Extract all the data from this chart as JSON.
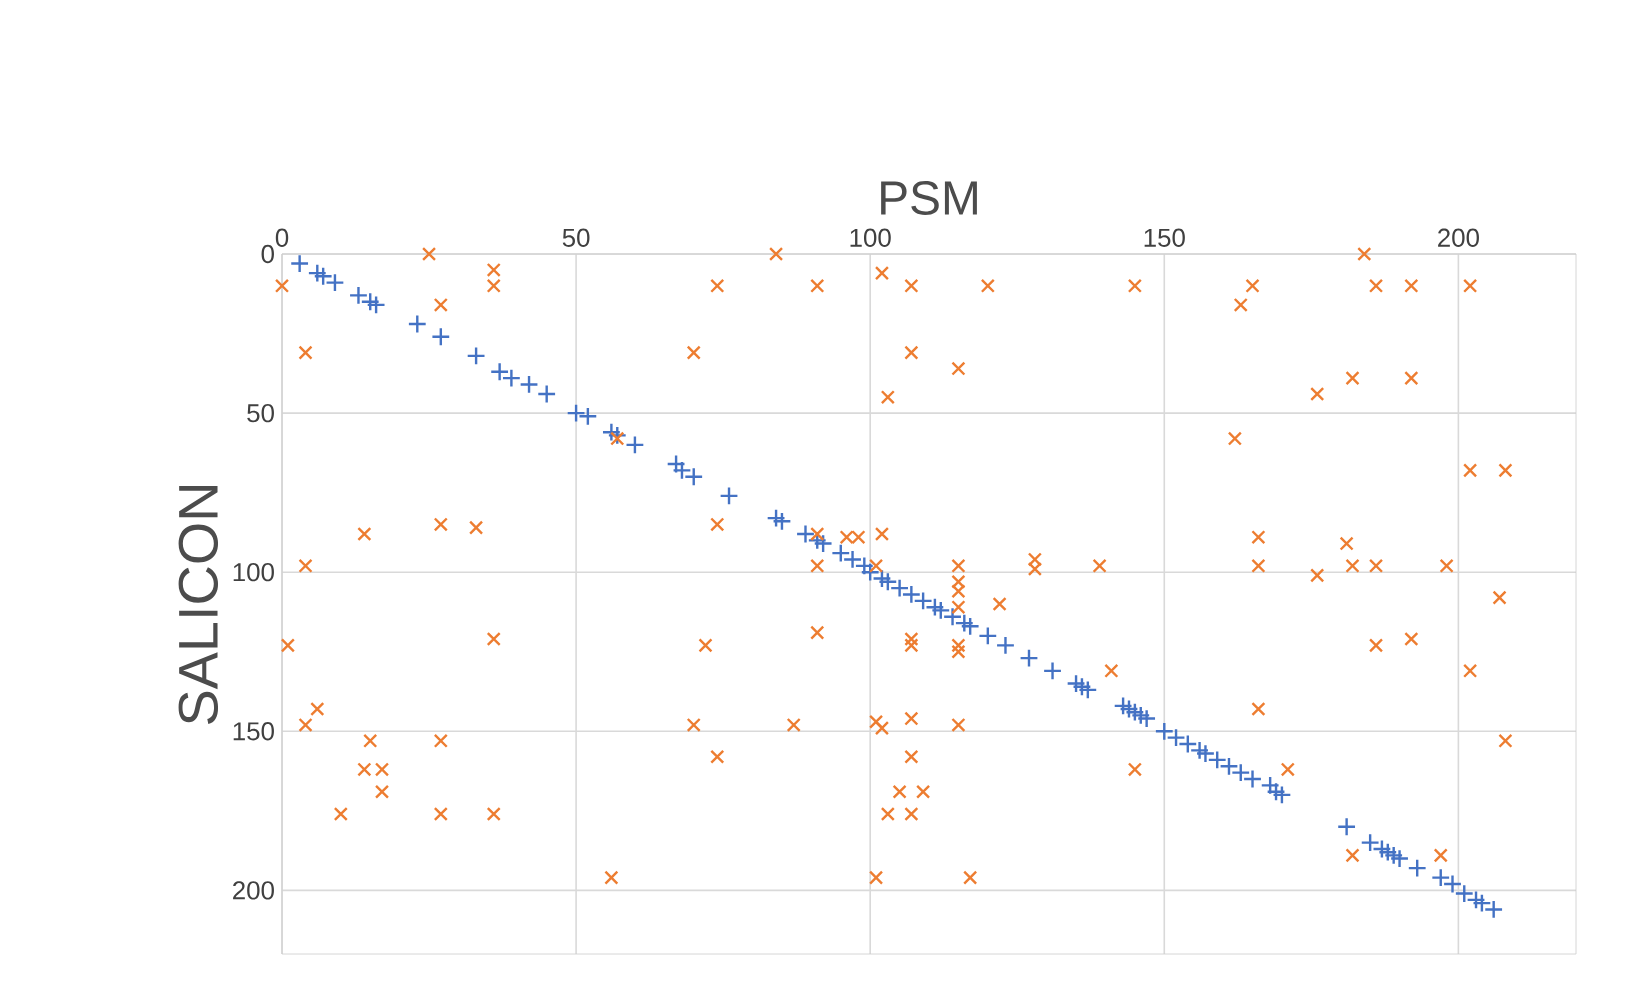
{
  "chart_data": {
    "type": "scatter",
    "xlabel": "PSM",
    "ylabel": "SALICON",
    "xlim": [
      0,
      220
    ],
    "ylim": [
      220,
      0
    ],
    "xticks": [
      0,
      50,
      100,
      150,
      200
    ],
    "yticks": [
      0,
      50,
      100,
      150,
      200
    ],
    "grid": true,
    "series": [
      {
        "color": "#4472c4",
        "marker": "plus",
        "x": [
          3,
          6,
          7,
          9,
          13,
          15,
          16,
          23,
          27,
          33,
          37,
          39,
          42,
          45,
          50,
          52,
          56,
          57,
          60,
          67,
          68,
          70,
          76,
          84,
          85,
          89,
          91,
          92,
          95,
          97,
          99,
          100,
          102,
          103,
          105,
          107,
          109,
          111,
          112,
          114,
          116,
          117,
          120,
          123,
          127,
          131,
          135,
          136,
          137,
          143,
          144,
          145,
          146,
          147,
          150,
          152,
          154,
          156,
          157,
          159,
          161,
          163,
          165,
          168,
          169,
          170,
          181,
          185,
          187,
          188,
          189,
          190,
          193,
          197,
          199,
          201,
          203,
          204,
          206
        ],
        "values": [
          3,
          6,
          7,
          9,
          13,
          15,
          16,
          22,
          26,
          32,
          37,
          39,
          41,
          44,
          50,
          51,
          56,
          57,
          60,
          66,
          68,
          70,
          76,
          83,
          84,
          88,
          90,
          91,
          94,
          96,
          98,
          100,
          102,
          103,
          105,
          107,
          109,
          111,
          112,
          114,
          116,
          117,
          120,
          123,
          127,
          131,
          135,
          136,
          137,
          142,
          143,
          144,
          145,
          146,
          150,
          152,
          154,
          156,
          157,
          159,
          161,
          163,
          165,
          167,
          169,
          170,
          180,
          185,
          187,
          188,
          189,
          190,
          193,
          196,
          198,
          201,
          203,
          204,
          206
        ]
      },
      {
        "color": "#ed7d31",
        "marker": "cross",
        "x": [
          0,
          25,
          36,
          36,
          27,
          4,
          57,
          27,
          33,
          14,
          4,
          74,
          70,
          74,
          1,
          36,
          6,
          4,
          15,
          27,
          14,
          17,
          17,
          10,
          27,
          36,
          56,
          72,
          70,
          74,
          84,
          91,
          102,
          107,
          120,
          145,
          107,
          115,
          103,
          91,
          96,
          98,
          102,
          91,
          101,
          115,
          115,
          115,
          115,
          122,
          128,
          128,
          139,
          91,
          107,
          107,
          115,
          115,
          141,
          87,
          101,
          102,
          107,
          115,
          107,
          105,
          109,
          103,
          107,
          101,
          117,
          145,
          165,
          163,
          184,
          186,
          192,
          202,
          176,
          182,
          192,
          162,
          202,
          208,
          166,
          166,
          181,
          182,
          186,
          176,
          198,
          207,
          186,
          192,
          202,
          166,
          208,
          171,
          182,
          197
        ],
        "values": [
          10,
          0,
          5,
          10,
          16,
          31,
          58,
          85,
          86,
          88,
          98,
          10,
          31,
          85,
          123,
          121,
          143,
          148,
          153,
          153,
          162,
          162,
          169,
          176,
          176,
          176,
          196,
          123,
          148,
          158,
          0,
          10,
          6,
          10,
          10,
          10,
          31,
          36,
          45,
          88,
          89,
          89,
          88,
          98,
          98,
          98,
          103,
          106,
          111,
          110,
          96,
          99,
          98,
          119,
          121,
          123,
          123,
          125,
          131,
          148,
          147,
          149,
          146,
          148,
          158,
          169,
          169,
          176,
          176,
          196,
          196,
          162,
          10,
          16,
          0,
          10,
          10,
          10,
          44,
          39,
          39,
          58,
          68,
          68,
          89,
          98,
          91,
          98,
          98,
          101,
          98,
          108,
          123,
          121,
          131,
          143,
          153,
          162,
          189,
          189
        ]
      }
    ]
  }
}
